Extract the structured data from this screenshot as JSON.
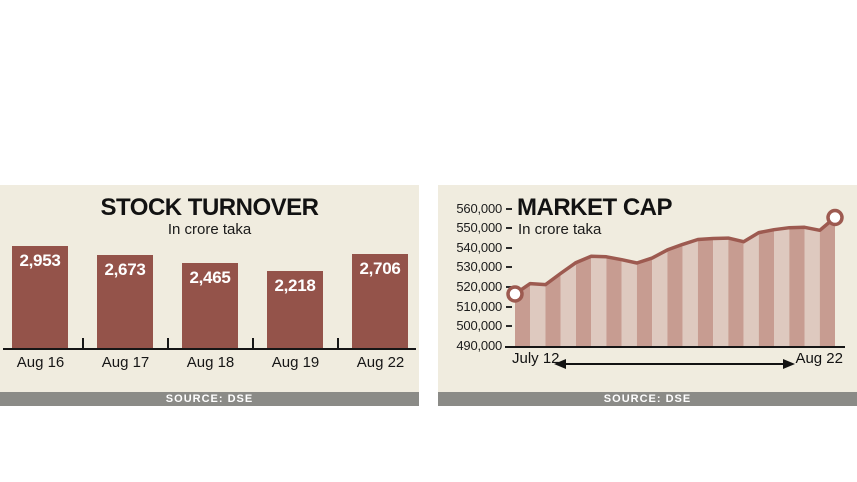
{
  "panels": [
    {
      "name": "stock-turnover",
      "source_label": "SOURCE: DSE"
    },
    {
      "name": "market-cap",
      "source_label": "SOURCE: DSE"
    }
  ],
  "colors": {
    "panel_background": "#f0ecdf",
    "bar": "#94534a",
    "line": "#9d5a50",
    "stripe_dark": "#c79c91",
    "stripe_light": "#dec9bf",
    "marker_fill": "#ffffff",
    "axis": "#161616",
    "source_bar": "#8b8b87"
  },
  "chart_data": [
    {
      "type": "bar",
      "title": "STOCK TURNOVER",
      "subtitle": "In crore taka",
      "categories": [
        "Aug 16",
        "Aug 17",
        "Aug 18",
        "Aug 19",
        "Aug 22"
      ],
      "values": [
        2953,
        2673,
        2465,
        2218,
        2706
      ],
      "value_labels": [
        "2,953",
        "2,673",
        "2,465",
        "2,218",
        "2,706"
      ],
      "ylim": [
        0,
        3000
      ],
      "grid": false,
      "legend": false
    },
    {
      "type": "area",
      "title": "MARKET CAP",
      "subtitle": "In crore taka",
      "xlabel_start": "July 12",
      "xlabel_end": "Aug 22",
      "y_tick_labels": [
        "560,000",
        "550,000",
        "540,000",
        "530,000",
        "520,000",
        "510,000",
        "500,000",
        "490,000"
      ],
      "ylim": [
        490000,
        560000
      ],
      "values": [
        516500,
        521800,
        521300,
        527000,
        532500,
        535800,
        535500,
        534000,
        532300,
        534800,
        539000,
        541800,
        544300,
        544800,
        545000,
        543200,
        547800,
        549300,
        550300,
        550500,
        549000,
        555500
      ],
      "markers": "circle markers on first and last points",
      "grid": false,
      "legend": false
    }
  ]
}
